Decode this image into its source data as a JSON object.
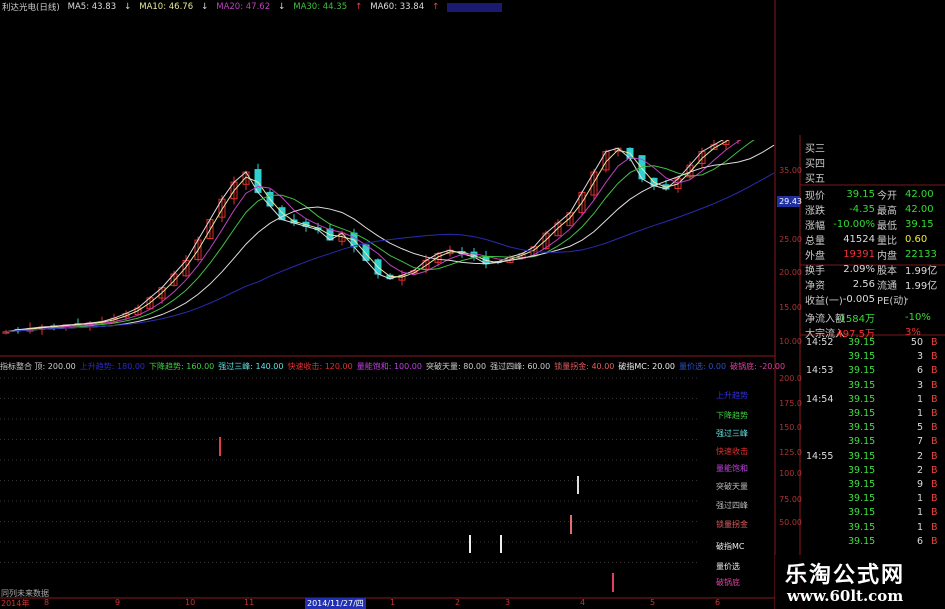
{
  "header": {
    "stock": "利达光电(日线)",
    "ma": [
      {
        "label": "MA5: 43.83",
        "dir": "down",
        "color": "#dddddd"
      },
      {
        "label": "MA10: 46.76",
        "dir": "down",
        "color": "#e8e8a0"
      },
      {
        "label": "MA20: 47.62",
        "dir": "down",
        "color": "#c040c0"
      },
      {
        "label": "MA30: 44.35",
        "dir": "up",
        "color": "#40c040"
      },
      {
        "label": "MA60: 33.84",
        "dir": "up",
        "color": "#dddddd"
      }
    ],
    "ma_blue_color": "#2a2ab0"
  },
  "kline": {
    "closes": [
      11.5,
      11.8,
      12,
      12.2,
      12.3,
      12.5,
      12.6,
      12.8,
      13,
      13.5,
      14.2,
      15,
      16.5,
      18,
      20,
      22,
      25,
      28,
      31,
      33.5,
      35,
      32,
      30,
      28,
      27.5,
      27,
      26.5,
      25,
      26,
      24,
      22,
      20,
      19.3,
      19.8,
      20.5,
      22,
      23,
      23.5,
      23,
      22.5,
      21.5,
      21.8,
      22.5,
      23,
      24,
      26,
      27.5,
      29,
      32,
      35,
      38,
      38.5,
      37,
      34,
      33,
      32.5,
      34,
      36,
      38,
      39,
      40,
      41,
      42,
      43,
      44
    ],
    "price_axis": [
      "35.00",
      "25.00",
      "20.00",
      "15.00"
    ],
    "current_price_tag": "29.43",
    "up_color": "#e03030",
    "down_color": "#30d0d0"
  },
  "indicator": {
    "legend": [
      {
        "t": "指标整合 顶: 200.00",
        "c": "#cccccc"
      },
      {
        "t": "上升趋势: 180.00",
        "c": "#2a2ad0"
      },
      {
        "t": "下降趋势: 160.00",
        "c": "#40d040"
      },
      {
        "t": "强过三峰: 140.00",
        "c": "#60e0e0"
      },
      {
        "t": "快速收击: 120.00",
        "c": "#e03030"
      },
      {
        "t": "量能饱和: 100.00",
        "c": "#c040e0"
      },
      {
        "t": "突破天量: 80.00",
        "c": "#cccccc"
      },
      {
        "t": "强过四峰: 60.00",
        "c": "#cccccc"
      },
      {
        "t": "锁量拐金: 40.00",
        "c": "#e06060"
      },
      {
        "t": "破指MC: 20.00",
        "c": "#eeeeee"
      },
      {
        "t": "量价选: 0.00",
        "c": "#3050c0"
      },
      {
        "t": "破锅底: -20.00",
        "c": "#e040a0"
      }
    ],
    "labels": [
      {
        "t": "上升趋势",
        "c": "#3030e0"
      },
      {
        "t": "下降趋势",
        "c": "#40d040"
      },
      {
        "t": "强过三峰",
        "c": "#60e0e0"
      },
      {
        "t": "快速收击",
        "c": "#e03030"
      },
      {
        "t": "量能饱和",
        "c": "#c040e0"
      },
      {
        "t": "突破天量",
        "c": "#bbbbbb"
      },
      {
        "t": "强过四峰",
        "c": "#bbbbbb"
      },
      {
        "t": "锁量拐金",
        "c": "#e06060"
      },
      {
        "t": "破指MC",
        "c": "#eeeeee"
      },
      {
        "t": "量价选",
        "c": "#eeeeee"
      },
      {
        "t": "破锅底",
        "c": "#e040a0"
      }
    ],
    "axis": [
      "200.0",
      "175.0",
      "150.0",
      "125.0",
      "100.0",
      "75.00",
      "50.00"
    ],
    "bottom_note": "同列未来数据"
  },
  "xaxis": [
    "2014年",
    "8",
    "9",
    "10",
    "11",
    "2014/11/27/四",
    "1",
    "2",
    "3",
    "4",
    "5",
    "6"
  ],
  "quote": {
    "bids": [
      "买三",
      "买四",
      "买五"
    ],
    "rows": [
      [
        "现价",
        "39.15",
        "g",
        "今开",
        "42.00",
        "g"
      ],
      [
        "涨跌",
        "-4.35",
        "g",
        "最高",
        "42.00",
        "g"
      ],
      [
        "涨幅",
        "-10.00%",
        "g",
        "最低",
        "39.15",
        "g"
      ],
      [
        "总量",
        "41524",
        "w",
        "量比",
        "0.60",
        "y"
      ],
      [
        "外盘",
        "19391",
        "r",
        "内盘",
        "22133",
        "g"
      ],
      [
        "换手",
        "2.09%",
        "w",
        "股本",
        "1.99亿",
        "w"
      ],
      [
        "净资",
        "2.56",
        "w",
        "流通",
        "1.99亿",
        "w"
      ],
      [
        "收益(一)",
        "-0.005",
        "w",
        "PE(动)",
        "-",
        "w"
      ],
      [
        "净流入额",
        "-1584万",
        "g",
        "",
        "-10%",
        "g"
      ],
      [
        "大宗流入",
        "497.5万",
        "r",
        "",
        "3%",
        "r"
      ]
    ]
  },
  "ticks": [
    [
      "14:52",
      "39.15",
      "50",
      "B"
    ],
    [
      "",
      "39.15",
      "3",
      "B"
    ],
    [
      "14:53",
      "39.15",
      "6",
      "B"
    ],
    [
      "",
      "39.15",
      "3",
      "B"
    ],
    [
      "14:54",
      "39.15",
      "1",
      "B"
    ],
    [
      "",
      "39.15",
      "1",
      "B"
    ],
    [
      "",
      "39.15",
      "5",
      "B"
    ],
    [
      "",
      "39.15",
      "7",
      "B"
    ],
    [
      "14:55",
      "39.15",
      "2",
      "B"
    ],
    [
      "",
      "39.15",
      "2",
      "B"
    ],
    [
      "",
      "39.15",
      "9",
      "B"
    ],
    [
      "",
      "39.15",
      "1",
      "B"
    ],
    [
      "",
      "39.15",
      "1",
      "B"
    ],
    [
      "",
      "39.15",
      "1",
      "B"
    ],
    [
      "",
      "39.15",
      "6",
      "B"
    ]
  ],
  "axis_small": "10.00",
  "watermark": {
    "name": "乐淘公式网",
    "url": "www.60lt.com"
  }
}
